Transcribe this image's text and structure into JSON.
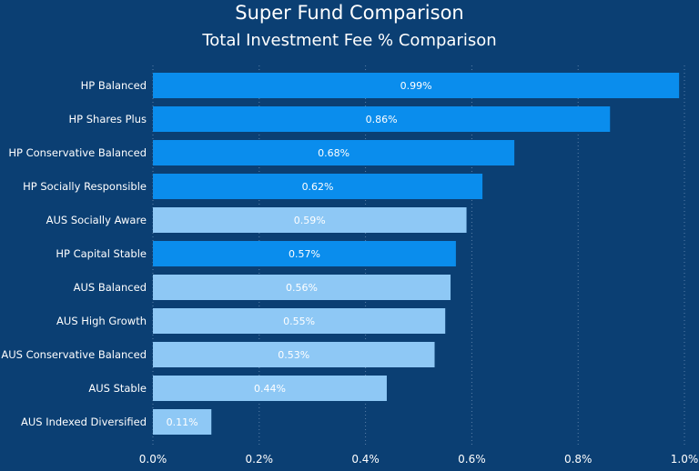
{
  "chart_data": {
    "type": "bar",
    "orientation": "horizontal",
    "title": "Super Fund Comparison",
    "subtitle": "Total Investment Fee % Comparison",
    "categories": [
      "HP Balanced",
      "HP Shares Plus",
      "HP Conservative Balanced",
      "HP Socially Responsible",
      "AUS Socially Aware",
      "HP Capital Stable",
      "AUS Balanced",
      "AUS High Growth",
      "AUS Conservative Balanced",
      "AUS Stable",
      "AUS Indexed Diversified"
    ],
    "values": [
      0.99,
      0.86,
      0.68,
      0.62,
      0.59,
      0.57,
      0.56,
      0.55,
      0.53,
      0.44,
      0.11
    ],
    "data_labels": [
      "0.99%",
      "0.86%",
      "0.68%",
      "0.62%",
      "0.59%",
      "0.57%",
      "0.56%",
      "0.55%",
      "0.53%",
      "0.44%",
      "0.11%"
    ],
    "xlim": [
      0,
      1.0
    ],
    "x_ticks": [
      0,
      0.2,
      0.4,
      0.6,
      0.8,
      1.0
    ],
    "x_tick_labels": [
      "0.0%",
      "0.2%",
      "0.4%",
      "0.6%",
      "0.8%",
      "1.0%"
    ],
    "grid": "vertical dotted",
    "colors": {
      "HP": "#0a8ded",
      "AUS": "#8ec8f5",
      "background": "#0b3f73"
    }
  }
}
